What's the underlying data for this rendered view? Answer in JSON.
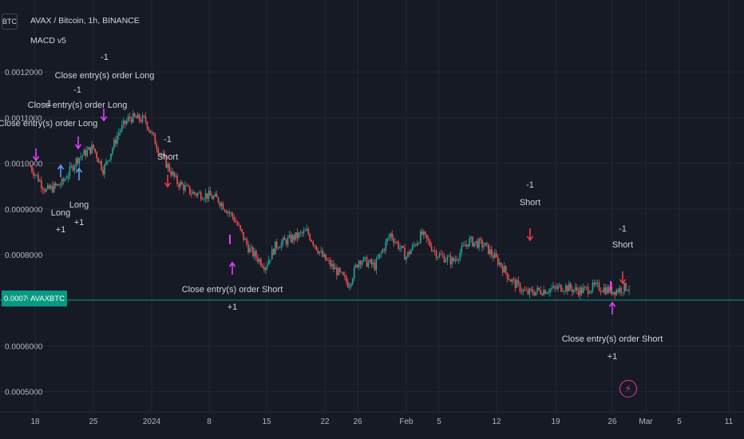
{
  "header": {
    "symbol_button": "BTC",
    "title": "AVAX / Bitcoin, 1h, BINANCE",
    "study": "MACD v5"
  },
  "price_tag": {
    "value": "0.0007003",
    "symbol": "AVAXBTC"
  },
  "chart_data": {
    "type": "candlestick",
    "y_ticks": [
      "0.0012000",
      "0.0011000",
      "0.0010000",
      "0.0009000",
      "0.0008000",
      "0.0006000",
      "0.0005000"
    ],
    "x_ticks": [
      "18",
      "25",
      "2024",
      "8",
      "15",
      "22",
      "26",
      "Feb",
      "5",
      "12",
      "19",
      "26",
      "Mar",
      "5",
      "11"
    ],
    "ylim": [
      0.00045,
      0.00126
    ],
    "last_price": 0.0007003,
    "price_path": [
      {
        "x": 0,
        "y": 0.000993
      },
      {
        "x": 3,
        "y": 0.00094
      },
      {
        "x": 6,
        "y": 0.000955
      },
      {
        "x": 9,
        "y": 0.00101
      },
      {
        "x": 12,
        "y": 0.001035
      },
      {
        "x": 14,
        "y": 0.000985
      },
      {
        "x": 17,
        "y": 0.00107
      },
      {
        "x": 19,
        "y": 0.0011
      },
      {
        "x": 22,
        "y": 0.001095
      },
      {
        "x": 25,
        "y": 0.00102
      },
      {
        "x": 28,
        "y": 0.00096
      },
      {
        "x": 31,
        "y": 0.000935
      },
      {
        "x": 34,
        "y": 0.00093
      },
      {
        "x": 36,
        "y": 0.00092
      },
      {
        "x": 39,
        "y": 0.00088
      },
      {
        "x": 42,
        "y": 0.00081
      },
      {
        "x": 45,
        "y": 0.000775
      },
      {
        "x": 47,
        "y": 0.00082
      },
      {
        "x": 50,
        "y": 0.000835
      },
      {
        "x": 53,
        "y": 0.00085
      },
      {
        "x": 56,
        "y": 0.000795
      },
      {
        "x": 59,
        "y": 0.00076
      },
      {
        "x": 61,
        "y": 0.000735
      },
      {
        "x": 63,
        "y": 0.00079
      },
      {
        "x": 66,
        "y": 0.000775
      },
      {
        "x": 69,
        "y": 0.000845
      },
      {
        "x": 72,
        "y": 0.000795
      },
      {
        "x": 75,
        "y": 0.000845
      },
      {
        "x": 78,
        "y": 0.0008
      },
      {
        "x": 81,
        "y": 0.000785
      },
      {
        "x": 84,
        "y": 0.00083
      },
      {
        "x": 87,
        "y": 0.00082
      },
      {
        "x": 90,
        "y": 0.00078
      },
      {
        "x": 92,
        "y": 0.000745
      },
      {
        "x": 95,
        "y": 0.000715
      },
      {
        "x": 97,
        "y": 0.00072
      },
      {
        "x": 100,
        "y": 0.000725
      }
    ],
    "annotations": [
      {
        "label": "Close entry(s) order Long",
        "qty": "-1",
        "side": "close-long",
        "x": 1,
        "y": 0.000995
      },
      {
        "label": "Long",
        "qty": "+1",
        "side": "long",
        "x": 6,
        "y": 0.00094
      },
      {
        "label": "Close entry(s) order Long",
        "qty": "-1",
        "side": "close-long",
        "x": 10,
        "y": 0.00103
      },
      {
        "label": "Long",
        "qty": "+1",
        "side": "long",
        "x": 10,
        "y": 0.000985
      },
      {
        "label": "Close entry(s) order Long",
        "qty": "-1",
        "side": "close-long",
        "x": 15,
        "y": 0.00111
      },
      {
        "label": "Short",
        "qty": "-1",
        "side": "short",
        "x": 29,
        "y": 0.00095
      },
      {
        "label": "Close entry(s) order Short",
        "qty": "+1",
        "side": "close-short",
        "x": 41,
        "y": 0.000775
      },
      {
        "label": "Short",
        "qty": "-1",
        "side": "short",
        "x": 97,
        "y": 0.00082
      },
      {
        "label": "Short",
        "qty": "-1",
        "side": "short",
        "x": 114,
        "y": 0.000712
      },
      {
        "label": "Close entry(s) order Short",
        "qty": "+1",
        "side": "close-short",
        "x": 111,
        "y": 0.0007
      }
    ],
    "colors": {
      "up": "#26a69a",
      "down": "#ef5350",
      "long": "#2962ff",
      "short": "#f23645",
      "close": "#e040fb",
      "price_line": "#089981"
    }
  }
}
